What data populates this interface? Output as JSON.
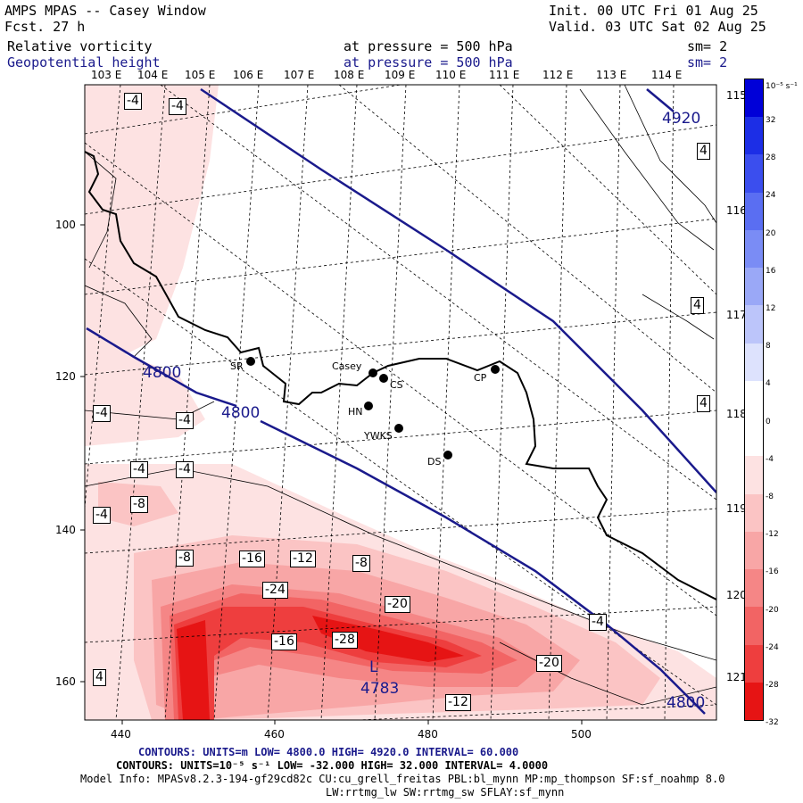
{
  "header": {
    "title": "AMPS MPAS -- Casey Window",
    "forecast": "Fcst.   27 h",
    "init": "Init. 00 UTC Fri 01 Aug 25",
    "valid": "Valid. 03 UTC Sat 02 Aug 25",
    "field1_name": "Relative vorticity",
    "field1_level": "at pressure =  500 hPa",
    "field1_sm": "sm= 2",
    "field2_name": "Geopotential height",
    "field2_level": "at pressure =  500 hPa",
    "field2_sm": "sm= 2"
  },
  "top_lon_labels": [
    "103 E",
    "104 E",
    "105 E",
    "106 E",
    "107 E",
    "108 E",
    "109 E",
    "110 E",
    "111 E",
    "112 E",
    "113 E",
    "114 E"
  ],
  "right_lon_labels": [
    "115 E",
    "116 E",
    "117 E",
    "118 E",
    "119 E",
    "120 E",
    "121 E"
  ],
  "y_ticks": [
    "100",
    "120",
    "140",
    "160"
  ],
  "x_ticks": [
    "440",
    "460",
    "480",
    "500"
  ],
  "colorbar": {
    "unit": "10⁻⁵ s⁻¹",
    "labels": [
      "32",
      "28",
      "24",
      "20",
      "16",
      "12",
      "8",
      "4",
      "0",
      "-4",
      "-8",
      "-12",
      "-16",
      "-20",
      "-24",
      "-28",
      "-32"
    ],
    "colors": [
      "#0000d8",
      "#1c2ee6",
      "#3b4eee",
      "#5a6ef2",
      "#7a8cf5",
      "#9aa8f7",
      "#bcc5fa",
      "#dde2fd",
      "#ffffff",
      "#ffffff",
      "#fde2e2",
      "#fbc4c4",
      "#f8a6a6",
      "#f58686",
      "#f26464",
      "#ee3e3e",
      "#e61414"
    ]
  },
  "places": {
    "sr": "SR",
    "casey": "Casey",
    "cs": "CS",
    "cp": "CP",
    "hn": "HN",
    "ywks": "YWKS",
    "ds": "DS"
  },
  "height_labels": {
    "h4920": "4920",
    "h4800a": "4800",
    "h4800b": "4800",
    "h4800c": "4800",
    "low": "L",
    "low_value": "4783"
  },
  "vort_labels": [
    "-4",
    "-4",
    "4",
    "4",
    "4",
    "-4",
    "-4",
    "-4",
    "-4",
    "-4",
    "-8",
    "-8",
    "-8",
    "-16",
    "-12",
    "-24",
    "-20",
    "-28",
    "-16",
    "-20",
    "-12",
    "4",
    "-4"
  ],
  "footer": {
    "line1": "CONTOURS:  UNITS=m  LOW=  4800.0        HIGH=  4920.0        INTERVAL=   60.000",
    "line2": "CONTOURS:  UNITS=10⁻⁵ s⁻¹  LOW= -32.000        HIGH=  32.000        INTERVAL=   4.0000",
    "line3": "Model Info: MPASv8.2.3-194-gf29cd82c CU:cu_grell_freitas PBL:bl_mynn MP:mp_thompson SF:sf_noahmp 8.0",
    "line4": "LW:rrtmg_lw SW:rrtmg_sw SFLAY:sf_mynn"
  }
}
